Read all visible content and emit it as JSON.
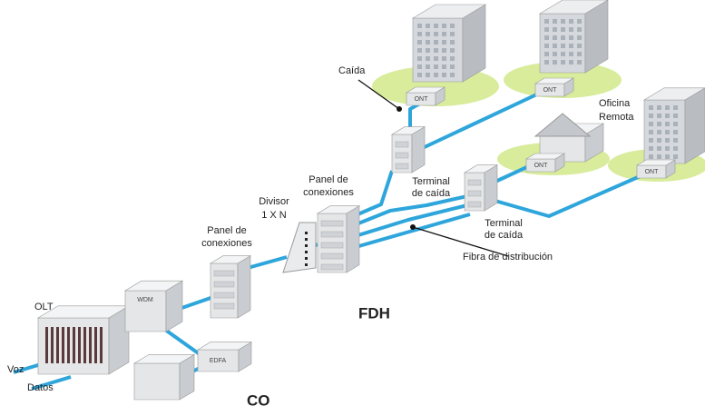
{
  "callouts": {
    "drop": [
      "Caída"
    ],
    "remote_office": [
      "Oficina",
      "Remota"
    ],
    "fdh_panel": [
      "Panel de",
      "conexiones"
    ],
    "splitter": [
      "Divisor",
      "1 X N"
    ],
    "co_panel": [
      "Panel de",
      "conexiones"
    ],
    "terminal_1": [
      "Terminal",
      "de caída"
    ],
    "terminal_2": [
      "Terminal",
      "de caída"
    ],
    "distribution": [
      "Fibra de distribución"
    ]
  },
  "sections": {
    "fdh": "FDH",
    "co": "CO"
  },
  "devices": {
    "olt": "OLT",
    "ont": [
      "ONT",
      "ONT",
      "ONT",
      "ONT"
    ],
    "wdm": "WDM",
    "edfa": "EDFA"
  },
  "inputs": [
    "Voz",
    "Datos"
  ]
}
